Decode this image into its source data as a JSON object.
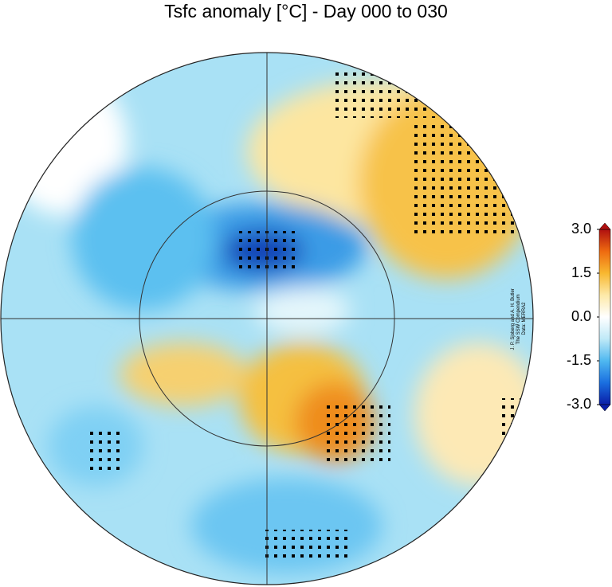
{
  "title": "Tsfc anomaly [°C] - Day 000 to 030",
  "colorbar": {
    "vmin": -3,
    "vmax": 3,
    "ticks": [
      {
        "value": 3,
        "label": "3.0"
      },
      {
        "value": 1.5,
        "label": "1.5"
      },
      {
        "value": 0,
        "label": "0.0"
      },
      {
        "value": -1.5,
        "label": "-1.5"
      },
      {
        "value": -3,
        "label": "-3.0"
      }
    ],
    "colors": [
      "#0a1ea8",
      "#1a6fe0",
      "#4fb8f0",
      "#bfe9f7",
      "#ffffff",
      "#fde9a8",
      "#f8b830",
      "#ee6a10",
      "#b01010"
    ]
  },
  "credit": [
    "J. P. Sjoberg and A. H. Butler",
    "The SSW Compendium",
    "Data: MERRA2"
  ]
}
